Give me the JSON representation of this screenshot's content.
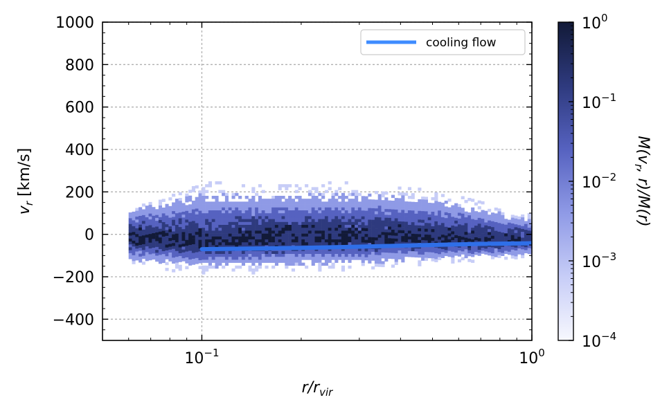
{
  "chart_data": {
    "type": "heatmap",
    "xlabel": "r/r",
    "xlabel_sub": "vir",
    "ylabel": "v",
    "ylabel_sub": "r",
    "ylabel_unit": " [km/s]",
    "x_scale": "log",
    "xlim": [
      0.05,
      1.0
    ],
    "ylim": [
      -500,
      1000
    ],
    "x_ticks": [
      {
        "value": 0.1,
        "base": "10",
        "exp": "−1"
      },
      {
        "value": 1.0,
        "base": "10",
        "exp": "0"
      }
    ],
    "y_ticks": [
      {
        "value": -400,
        "label": "−400"
      },
      {
        "value": -200,
        "label": "−200"
      },
      {
        "value": 0,
        "label": "0"
      },
      {
        "value": 200,
        "label": "200"
      },
      {
        "value": 400,
        "label": "400"
      },
      {
        "value": 600,
        "label": "600"
      },
      {
        "value": 800,
        "label": "800"
      },
      {
        "value": 1000,
        "label": "1000"
      }
    ],
    "grid": true,
    "legend": {
      "placement": "top-right",
      "entries": [
        {
          "label": "cooling flow",
          "color": "#3f8cff"
        }
      ]
    },
    "series": [
      {
        "name": "cooling flow",
        "type": "line",
        "color": "#2f6fe8",
        "x": [
          0.1,
          0.2,
          0.3,
          0.5,
          0.7,
          1.0
        ],
        "y": [
          -70,
          -64,
          -58,
          -50,
          -45,
          -42
        ]
      }
    ],
    "heatmap": {
      "quantity": "M(v_r, r)/M(r)",
      "r_range": [
        0.06,
        1.0
      ],
      "mean_vr": [
        {
          "r": 0.06,
          "v": -15
        },
        {
          "r": 0.1,
          "v": -40
        },
        {
          "r": 0.2,
          "v": -15
        },
        {
          "r": 0.4,
          "v": -20
        },
        {
          "r": 0.7,
          "v": -30
        },
        {
          "r": 1.0,
          "v": -30
        }
      ],
      "spread_vr": [
        {
          "r": 0.06,
          "upper": 140,
          "lower": -140
        },
        {
          "r": 0.1,
          "upper": 220,
          "lower": -170
        },
        {
          "r": 0.3,
          "upper": 220,
          "lower": -160
        },
        {
          "r": 0.5,
          "upper": 200,
          "lower": -130
        },
        {
          "r": 1.0,
          "upper": 80,
          "lower": -110
        }
      ]
    },
    "colorbar": {
      "label": "M(v",
      "label_sub": "r",
      "label_rest": ", r)/M(r)",
      "scale": "log",
      "range": [
        0.0001,
        1
      ],
      "ticks": [
        {
          "value": 0.0001,
          "base": "10",
          "exp": "−4"
        },
        {
          "value": 0.001,
          "base": "10",
          "exp": "−3"
        },
        {
          "value": 0.01,
          "base": "10",
          "exp": "−2"
        },
        {
          "value": 0.1,
          "base": "10",
          "exp": "−1"
        },
        {
          "value": 1,
          "base": "10",
          "exp": "0"
        }
      ],
      "colors": [
        "#f7f8fe",
        "#c7cdf7",
        "#8f9ae6",
        "#5662c0",
        "#2e3a7e",
        "#121a38"
      ]
    }
  }
}
